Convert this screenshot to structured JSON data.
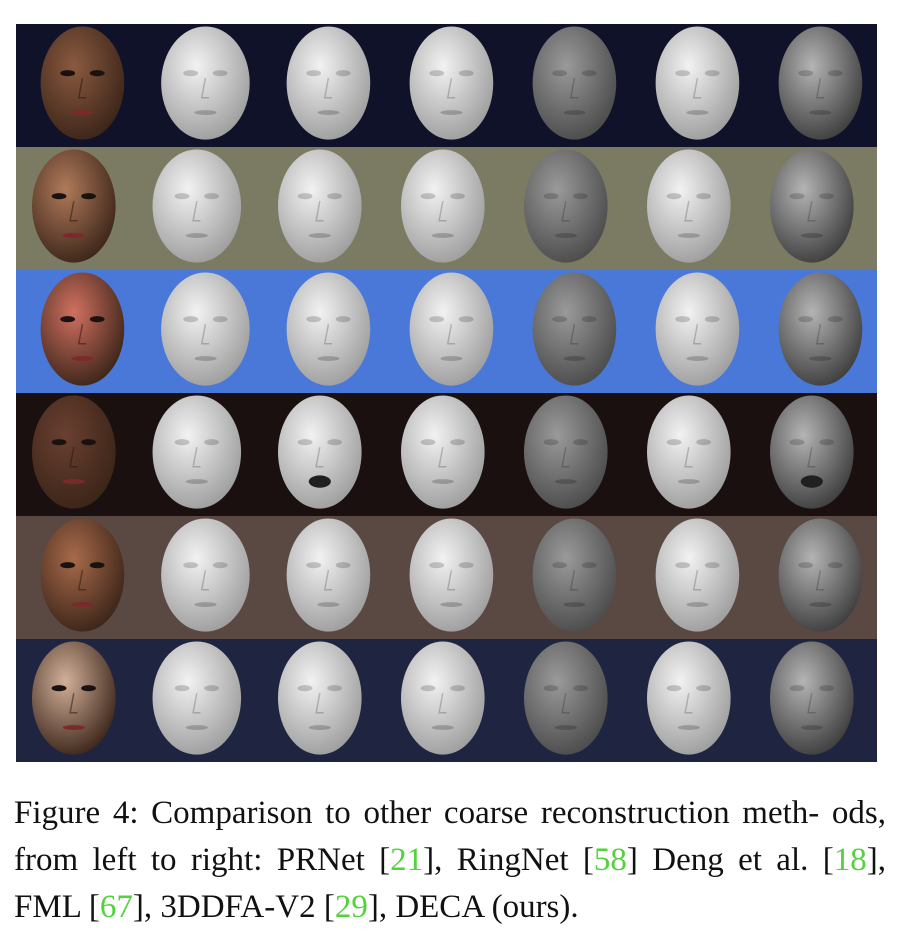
{
  "caption": {
    "prefix": "Figure 4: Comparison to other coarse reconstruction meth- ods, from left to right: PRNet [",
    "ref1": "21",
    "text2": "], RingNet [",
    "ref2": "58",
    "text3": "] Deng et al. [",
    "ref3": "18",
    "text4": "], FML [",
    "ref4": "67",
    "text5": "], 3DDFA-V2 [",
    "ref5": "29",
    "text6": "], DECA (ours)."
  },
  "colors": {
    "citation": "#52d23d",
    "row_backgrounds": [
      "#0f1228",
      "#7a7b62",
      "#4a78d8",
      "#1a1010",
      "#5a4842",
      "#1f2540"
    ],
    "photo_skin": [
      "#8a5a40",
      "#b07a5a",
      "#d07060",
      "#6a4030",
      "#a86a4a",
      "#d2b09a"
    ],
    "mesh_gray": "#c8c8c8",
    "mesh_dark": "#6e6e6e"
  },
  "grid": {
    "rows": 6,
    "columns": 7,
    "column_order": [
      "input",
      "prnet",
      "ringnet",
      "deng",
      "fml",
      "3ddfa_v2",
      "deca"
    ]
  }
}
